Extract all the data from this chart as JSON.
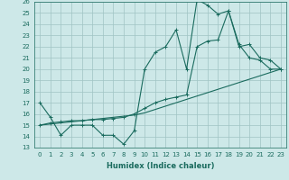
{
  "xlabel": "Humidex (Indice chaleur)",
  "xlim": [
    -0.5,
    23.5
  ],
  "ylim": [
    13,
    26
  ],
  "xticks": [
    0,
    1,
    2,
    3,
    4,
    5,
    6,
    7,
    8,
    9,
    10,
    11,
    12,
    13,
    14,
    15,
    16,
    17,
    18,
    19,
    20,
    21,
    22,
    23
  ],
  "yticks": [
    13,
    14,
    15,
    16,
    17,
    18,
    19,
    20,
    21,
    22,
    23,
    24,
    25,
    26
  ],
  "bg_color": "#cde8e8",
  "grid_color": "#a0c4c4",
  "line_color": "#1a6b5e",
  "line1_x": [
    0,
    1,
    2,
    3,
    4,
    5,
    6,
    7,
    8,
    9,
    10,
    11,
    12,
    13,
    14,
    15,
    16,
    17,
    18,
    19,
    20,
    21,
    22,
    23
  ],
  "line1_y": [
    17,
    15.7,
    14.1,
    15.0,
    15.0,
    15.0,
    14.1,
    14.1,
    13.3,
    14.5,
    20.0,
    21.5,
    22.0,
    23.5,
    20.0,
    26.2,
    25.7,
    24.9,
    25.2,
    22.2,
    21.0,
    20.8,
    20.0,
    20.0
  ],
  "line2_x": [
    0,
    1,
    2,
    3,
    4,
    5,
    6,
    7,
    8,
    9,
    10,
    11,
    12,
    13,
    14,
    15,
    16,
    17,
    18,
    19,
    20,
    21,
    22,
    23
  ],
  "line2_y": [
    15.0,
    15.1,
    15.2,
    15.3,
    15.4,
    15.5,
    15.6,
    15.7,
    15.8,
    15.9,
    16.1,
    16.4,
    16.7,
    17.0,
    17.3,
    17.6,
    17.9,
    18.2,
    18.5,
    18.8,
    19.1,
    19.4,
    19.7,
    20.0
  ],
  "line3_x": [
    0,
    1,
    2,
    3,
    4,
    5,
    6,
    7,
    8,
    9,
    10,
    11,
    12,
    13,
    14,
    15,
    16,
    17,
    18,
    19,
    20,
    21,
    22,
    23
  ],
  "line3_y": [
    15.0,
    15.2,
    15.3,
    15.4,
    15.4,
    15.5,
    15.5,
    15.6,
    15.7,
    16.0,
    16.5,
    17.0,
    17.3,
    17.5,
    17.7,
    22.0,
    22.5,
    22.6,
    25.2,
    22.0,
    22.2,
    21.0,
    20.8,
    20.0
  ]
}
